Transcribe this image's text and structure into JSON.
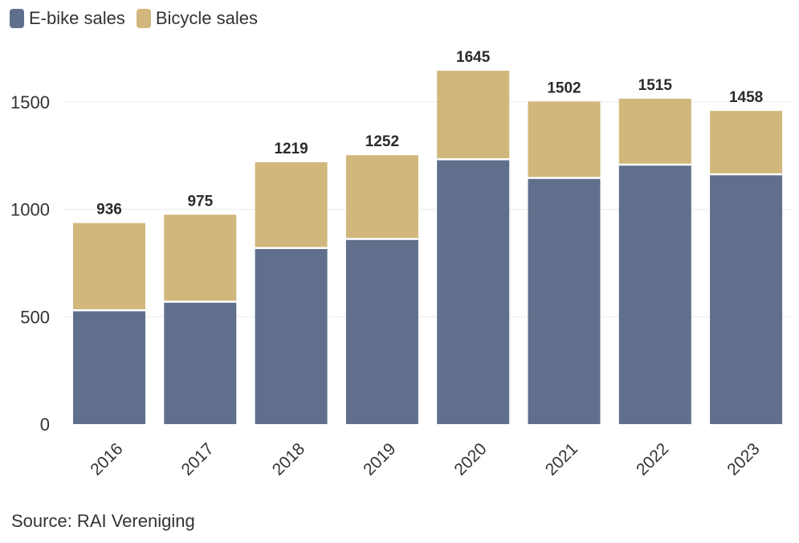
{
  "chart_data": {
    "type": "bar",
    "stacked": true,
    "title": "",
    "xlabel": "",
    "ylabel": "",
    "ylim": [
      0,
      1750
    ],
    "yticks": [
      0,
      500,
      1000,
      1500
    ],
    "grid": true,
    "legend_position": "top-left",
    "categories": [
      "2016",
      "2017",
      "2018",
      "2019",
      "2020",
      "2021",
      "2022",
      "2023"
    ],
    "series": [
      {
        "name": "E-bike sales",
        "color": "#5f6f8c",
        "values": [
          530,
          570,
          820,
          862,
          1233,
          1146,
          1208,
          1163
        ]
      },
      {
        "name": "Bicycle sales",
        "color": "#d1b77b",
        "values": [
          406,
          405,
          399,
          390,
          412,
          356,
          307,
          295
        ]
      }
    ],
    "totals": [
      936,
      975,
      1219,
      1252,
      1645,
      1502,
      1515,
      1458
    ]
  },
  "source": "Source: RAI Vereniging"
}
